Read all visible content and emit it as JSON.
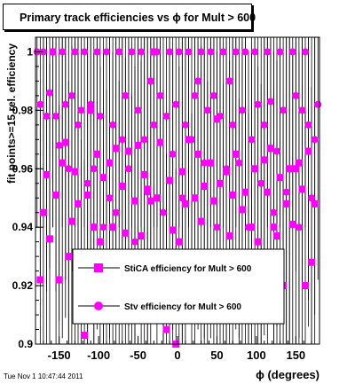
{
  "page": {
    "title": "Primary track efficiencies vs ϕ for Mult > 600",
    "footer_timestamp": "Tue Nov  1 10:47:44 2011"
  },
  "chart_data": {
    "type": "scatter",
    "title": "Primary track efficiencies vs ϕ for Mult > 600",
    "xlabel": "ϕ (degrees)",
    "ylabel": "fit points>=15 rel. efficiency",
    "xlim": [
      -180,
      180
    ],
    "ylim": [
      0.9,
      1.005
    ],
    "x_ticks": [
      -150,
      -100,
      -50,
      0,
      50,
      100,
      150
    ],
    "y_ticks": [
      0.9,
      0.92,
      0.94,
      0.96,
      0.98,
      1.0
    ],
    "y_tick_labels": [
      "0.9",
      "0.92",
      "0.94",
      "0.96",
      "0.98",
      "1"
    ],
    "grid": false,
    "legend_placement": "bottom-center",
    "series": [
      {
        "name": "StiCA efficiency  for Mult > 600",
        "marker": "square",
        "color": "#ff00ff",
        "x": [
          -174,
          -170,
          -166,
          -162,
          -158,
          -154,
          -150,
          -146,
          -142,
          -138,
          -134,
          -130,
          -126,
          -122,
          -118,
          -114,
          -110,
          -106,
          -102,
          -98,
          -94,
          -90,
          -86,
          -82,
          -78,
          -74,
          -70,
          -66,
          -62,
          -58,
          -54,
          -50,
          -46,
          -42,
          -38,
          -34,
          -30,
          -26,
          -22,
          -18,
          -14,
          -10,
          -6,
          -2,
          2,
          6,
          10,
          14,
          18,
          22,
          26,
          30,
          34,
          38,
          42,
          46,
          50,
          54,
          58,
          62,
          66,
          70,
          74,
          78,
          82,
          86,
          90,
          94,
          98,
          102,
          106,
          110,
          114,
          118,
          122,
          126,
          130,
          134,
          138,
          142,
          146,
          150,
          154,
          158,
          162,
          166,
          170,
          174
        ],
        "y": [
          0.922,
          0.945,
          0.958,
          0.936,
          1.0,
          0.951,
          0.922,
          0.962,
          0.969,
          0.93,
          0.942,
          0.959,
          0.948,
          0.91,
          0.903,
          0.951,
          0.98,
          0.94,
          0.965,
          0.935,
          0.957,
          0.927,
          0.962,
          0.94,
          0.967,
          0.93,
          0.954,
          0.938,
          0.966,
          0.925,
          0.949,
          0.968,
          0.937,
          0.958,
          0.953,
          0.949,
          1.0,
          0.95,
          0.969,
          0.927,
          0.905,
          0.956,
          0.939,
          0.9,
          0.935,
          0.959,
          0.948,
          0.97,
          0.919,
          0.95,
          0.965,
          0.942,
          0.954,
          0.93,
          0.962,
          0.949,
          0.977,
          0.955,
          0.929,
          0.959,
          0.937,
          0.951,
          0.965,
          0.924,
          0.946,
          0.952,
          0.919,
          0.94,
          0.96,
          0.935,
          0.929,
          0.963,
          0.952,
          0.967,
          0.94,
          0.937,
          0.957,
          0.92,
          0.948,
          0.96,
          0.941,
          0.96,
          0.962,
          0.953,
          0.92,
          0.966,
          0.928,
          0.948
        ]
      },
      {
        "name": "Stv efficiency  for Mult > 600",
        "marker": "circle",
        "color": "#ff00ff",
        "x": [
          -178,
          -174,
          -170,
          -166,
          -162,
          -158,
          -154,
          -150,
          -146,
          -142,
          -138,
          -134,
          -130,
          -126,
          -122,
          -118,
          -114,
          -110,
          -106,
          -102,
          -98,
          -94,
          -90,
          -86,
          -82,
          -78,
          -74,
          -70,
          -66,
          -62,
          -58,
          -54,
          -50,
          -46,
          -42,
          -38,
          -34,
          -30,
          -26,
          -22,
          -18,
          -14,
          -10,
          -6,
          -2,
          2,
          6,
          10,
          14,
          18,
          22,
          26,
          30,
          34,
          38,
          42,
          46,
          50,
          54,
          58,
          62,
          66,
          70,
          74,
          78,
          82,
          86,
          90,
          94,
          98,
          102,
          106,
          110,
          114,
          118,
          122,
          126,
          130,
          134,
          138,
          142,
          146,
          150,
          154,
          158,
          162,
          166,
          170,
          174,
          178
        ],
        "y": [
          1.0,
          0.982,
          1.0,
          0.978,
          0.986,
          1.0,
          0.978,
          0.968,
          1.0,
          0.982,
          0.96,
          0.985,
          1.0,
          0.975,
          0.98,
          1.0,
          0.955,
          0.982,
          0.96,
          1.0,
          0.978,
          0.94,
          1.0,
          0.95,
          0.975,
          0.945,
          1.0,
          0.97,
          0.985,
          0.96,
          1.0,
          0.935,
          0.98,
          1.0,
          0.97,
          0.952,
          0.99,
          0.975,
          1.0,
          0.985,
          0.945,
          0.978,
          1.0,
          0.965,
          0.982,
          1.0,
          0.95,
          0.975,
          1.0,
          0.97,
          0.985,
          0.99,
          1.0,
          0.962,
          0.98,
          1.0,
          0.985,
          0.94,
          0.978,
          1.0,
          0.96,
          0.99,
          0.975,
          1.0,
          0.962,
          0.98,
          1.0,
          0.94,
          0.97,
          1.0,
          0.982,
          0.955,
          0.975,
          1.0,
          0.983,
          0.945,
          0.966,
          1.0,
          0.98,
          0.952,
          0.96,
          1.0,
          0.985,
          0.94,
          0.98,
          1.0,
          0.975,
          0.95,
          0.97,
          0.982
        ]
      }
    ]
  }
}
